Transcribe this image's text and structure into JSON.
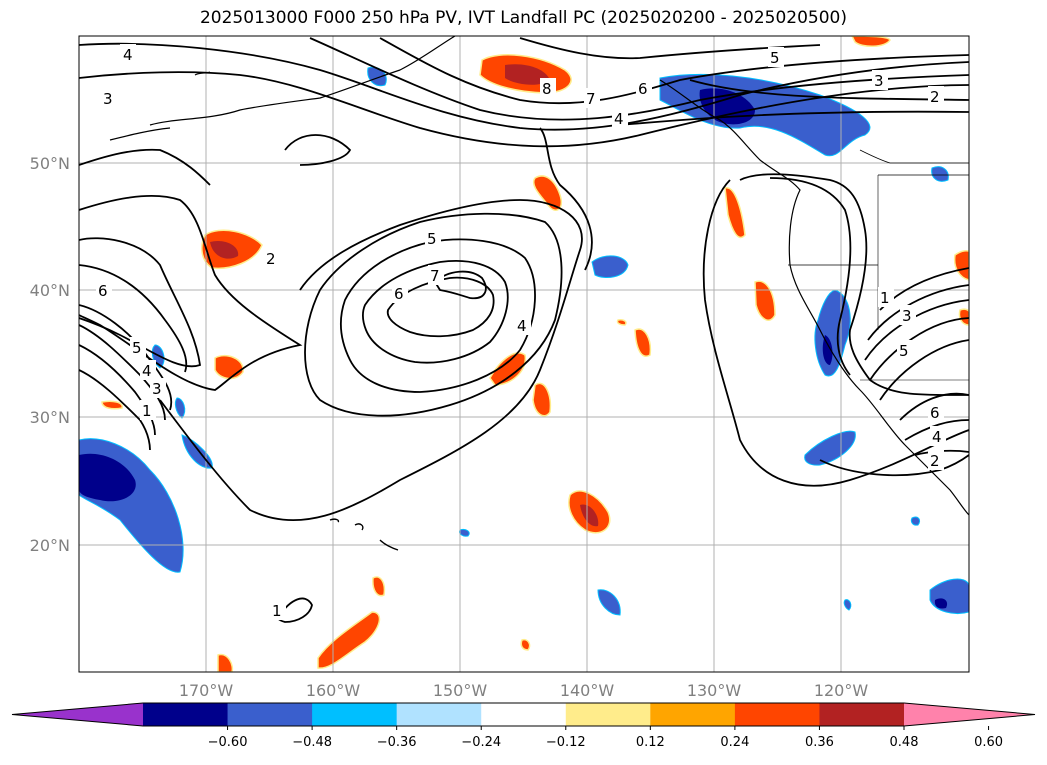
{
  "title": "2025013000 F000 250 hPa PV, IVT Landfall PC (2025020200 - 2025020500)",
  "lat_labels": [
    "50°N",
    "40°N",
    "30°N",
    "20°N"
  ],
  "lon_labels": [
    "170°W",
    "160°W",
    "150°W",
    "140°W",
    "130°W",
    "120°W"
  ],
  "colorbar": {
    "ticks": [
      "−0.60",
      "−0.48",
      "−0.36",
      "−0.24",
      "−0.12",
      "0.12",
      "0.24",
      "0.36",
      "0.48",
      "0.60"
    ],
    "colors": [
      "#9932CC",
      "#00008B",
      "#3A5FCD",
      "#00BFFF",
      "#B0E2FF",
      "#FFFFFF",
      "#FFEC8B",
      "#FFA500",
      "#FF4500",
      "#B22222",
      "#FF82AB"
    ]
  },
  "contour_labels": [
    "4",
    "3",
    "8",
    "7",
    "6",
    "5",
    "3",
    "2",
    "4",
    "2",
    "6",
    "5",
    "7",
    "6",
    "4",
    "5",
    "4",
    "3",
    "1",
    "1",
    "3",
    "5",
    "6",
    "4",
    "2",
    "1"
  ],
  "colors": {
    "contour": "#000000",
    "grid": "#b0b0b0",
    "coast": "#000000"
  }
}
